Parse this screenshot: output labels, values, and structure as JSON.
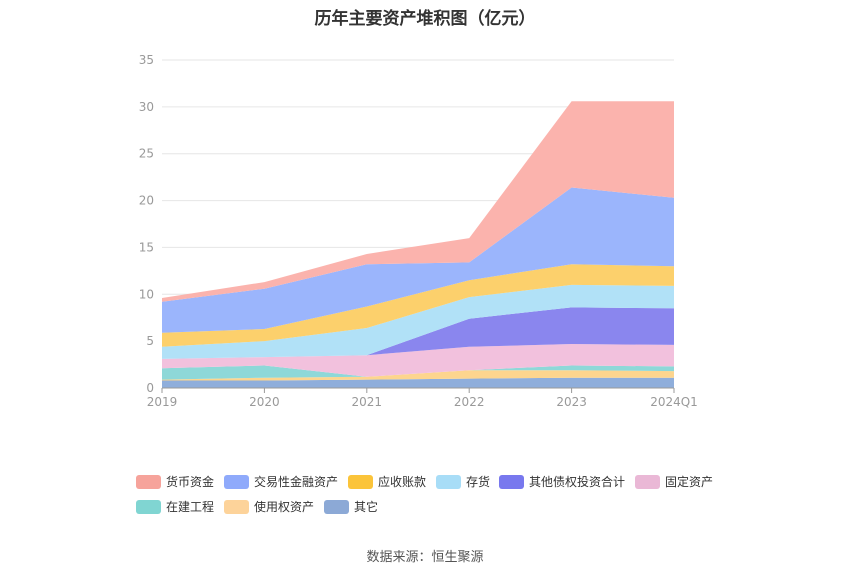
{
  "title": "历年主要资产堆积图（亿元）",
  "source": "数据来源：恒生聚源",
  "chart_data": {
    "type": "area",
    "stacked": true,
    "title": "历年主要资产堆积图（亿元）",
    "x": [
      "2019",
      "2020",
      "2021",
      "2022",
      "2023",
      "2024Q1"
    ],
    "ylim": [
      0,
      35
    ],
    "yticks": [
      0,
      5,
      10,
      15,
      20,
      25,
      30,
      35
    ],
    "grid": true,
    "legend_position": "bottom",
    "series": [
      {
        "name": "其它",
        "color": "#8faedb",
        "values": [
          0.8,
          0.8,
          0.9,
          1.0,
          1.1,
          1.1
        ]
      },
      {
        "name": "使用权资产",
        "color": "#fdd58e",
        "values": [
          0.1,
          0.3,
          0.3,
          0.9,
          0.8,
          0.7
        ]
      },
      {
        "name": "在建工程",
        "color": "#8ed8d8",
        "values": [
          1.2,
          1.3,
          0.0,
          0.0,
          0.5,
          0.5
        ]
      },
      {
        "name": "固定资产",
        "color": "#f2c1dd",
        "values": [
          1.0,
          0.9,
          2.3,
          2.5,
          2.3,
          2.3
        ]
      },
      {
        "name": "其他债权投资合计",
        "color": "#8a86ee",
        "values": [
          0.0,
          0.0,
          0.0,
          3.0,
          3.9,
          3.9
        ]
      },
      {
        "name": "存货",
        "color": "#b1e1f7",
        "values": [
          1.3,
          1.7,
          2.9,
          2.3,
          2.4,
          2.4
        ]
      },
      {
        "name": "应收账款",
        "color": "#fcd06c",
        "values": [
          1.5,
          1.3,
          2.3,
          1.8,
          2.2,
          2.1
        ]
      },
      {
        "name": "交易性金融资产",
        "color": "#9bb5fc",
        "values": [
          3.3,
          4.3,
          4.5,
          1.9,
          8.2,
          7.3
        ]
      },
      {
        "name": "货币资金",
        "color": "#fbb3ad",
        "values": [
          0.4,
          0.7,
          1.1,
          2.6,
          9.2,
          10.3
        ]
      }
    ]
  },
  "legend": [
    {
      "label": "货币资金",
      "color": "#f6a39b"
    },
    {
      "label": "交易性金融资产",
      "color": "#8faafb"
    },
    {
      "label": "应收账款",
      "color": "#fbc43a"
    },
    {
      "label": "存货",
      "color": "#a8ddf7"
    },
    {
      "label": "其他债权投资合计",
      "color": "#7878ee"
    },
    {
      "label": "固定资产",
      "color": "#eab8d6"
    },
    {
      "label": "在建工程",
      "color": "#80d5d2"
    },
    {
      "label": "使用权资产",
      "color": "#fdd39a"
    },
    {
      "label": "其它",
      "color": "#8ca9d6"
    }
  ]
}
